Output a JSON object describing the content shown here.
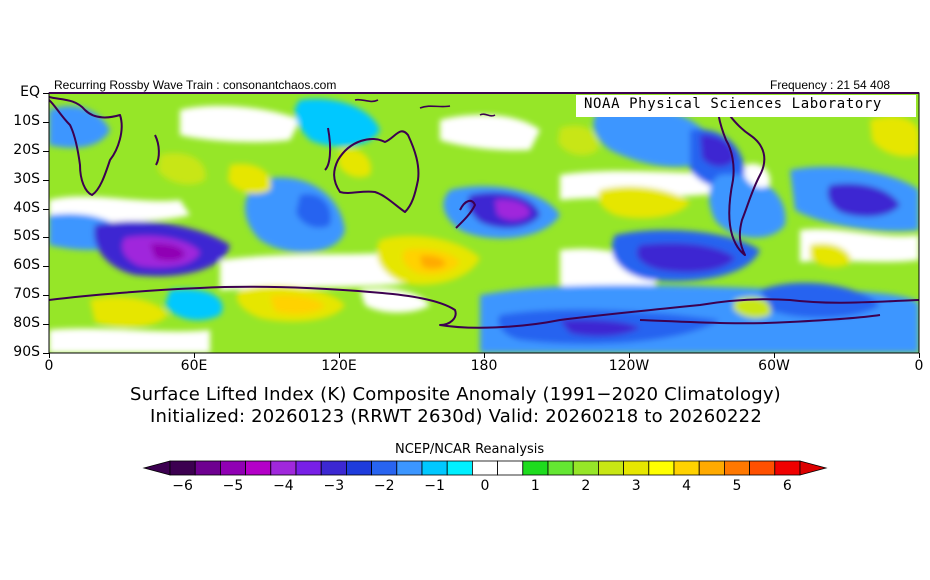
{
  "header": {
    "left": "Recurring Rossby Wave Train : consonantchaos.com",
    "right": "Frequency : 21 54 408",
    "lab_banner": "NOAA Physical Sciences Laboratory"
  },
  "map": {
    "region": "Southern Hemisphere 0–360°, EQ to 90S",
    "y_ticks": [
      "EQ",
      "10S",
      "20S",
      "30S",
      "40S",
      "50S",
      "60S",
      "70S",
      "80S",
      "90S"
    ],
    "x_ticks": [
      "0",
      "60E",
      "120E",
      "180",
      "120W",
      "60W",
      "0"
    ],
    "anomalies": [
      {
        "name": "Indian Ocean low",
        "lon": 45,
        "lat": -55,
        "value": -4
      },
      {
        "name": "Pacific low",
        "lon": 195,
        "lat": -40,
        "value": -4
      },
      {
        "name": "South Atlantic low",
        "lon": 333,
        "lat": -40,
        "value": -3
      },
      {
        "name": "Tasman high",
        "lon": 160,
        "lat": -57,
        "value": 3
      },
      {
        "name": "Southern Ocean high",
        "lon": 75,
        "lat": -72,
        "value": 3
      },
      {
        "name": "Subtropical high",
        "lon": 230,
        "lat": -30,
        "value": 2
      },
      {
        "name": "South Pacific high",
        "lon": 270,
        "lat": -50,
        "value": -4
      }
    ]
  },
  "titles": {
    "line1": "Surface Lifted Index (K) Composite Anomaly (1991−2020 Climatology)",
    "line2": "Initialized: 20260123 (RRWT 2630d) Valid: 20260218 to 20260222"
  },
  "colorbar": {
    "title": "NCEP/NCAR Reanalysis",
    "labels": [
      "−6",
      "−5",
      "−4",
      "−3",
      "−2",
      "−1",
      "0",
      "1",
      "2",
      "3",
      "4",
      "5",
      "6"
    ],
    "colors": [
      "#3c0050",
      "#6e0090",
      "#9000b4",
      "#b400c8",
      "#a028dc",
      "#7820e6",
      "#3c28d2",
      "#1e3cdc",
      "#2864f0",
      "#3c96ff",
      "#00c8ff",
      "#00f0ff",
      "#ffffff",
      "#ffffff",
      "#1edc1e",
      "#64e632",
      "#96e628",
      "#c8e614",
      "#e6e600",
      "#ffff00",
      "#ffd200",
      "#ffaa00",
      "#ff7800",
      "#ff5000",
      "#f00000"
    ],
    "low_color": "#3c0050",
    "high_color": "#dc0000"
  }
}
